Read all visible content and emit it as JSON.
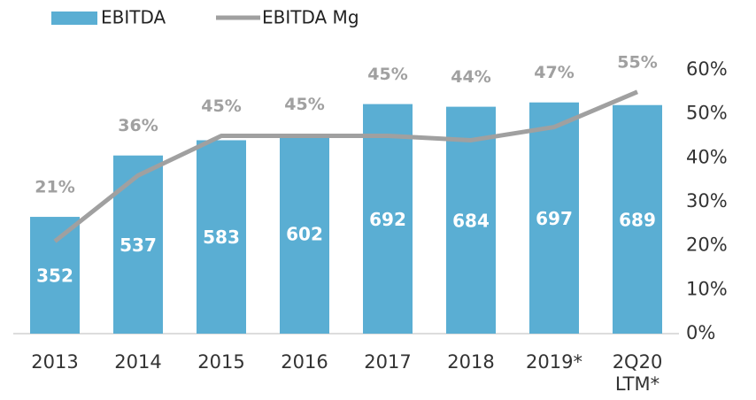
{
  "chart_data": {
    "type": "bar_line",
    "categories": [
      "2013",
      "2014",
      "2015",
      "2016",
      "2017",
      "2018",
      "2019*",
      "2Q20\nLTM*"
    ],
    "series": [
      {
        "name": "EBITDA",
        "type": "bar",
        "color": "#5aaed3",
        "values": [
          352,
          537,
          583,
          602,
          692,
          684,
          697,
          689
        ]
      },
      {
        "name": "EBITDA Mg",
        "type": "line",
        "axis": "y2",
        "color": "#a0a0a0",
        "values": [
          21,
          36,
          45,
          45,
          45,
          44,
          47,
          55
        ],
        "value_labels": [
          "21%",
          "36%",
          "45%",
          "45%",
          "45%",
          "44%",
          "47%",
          "55%"
        ]
      }
    ],
    "ylim": [
      0,
      795
    ],
    "y2lim": [
      0,
      60
    ],
    "y2ticks": [
      {
        "value": 0,
        "label": "0%"
      },
      {
        "value": 10,
        "label": "10%"
      },
      {
        "value": 20,
        "label": "20%"
      },
      {
        "value": 30,
        "label": "30%"
      },
      {
        "value": 40,
        "label": "40%"
      },
      {
        "value": 50,
        "label": "50%"
      },
      {
        "value": 60,
        "label": "60%"
      }
    ],
    "legend": "top-left"
  }
}
